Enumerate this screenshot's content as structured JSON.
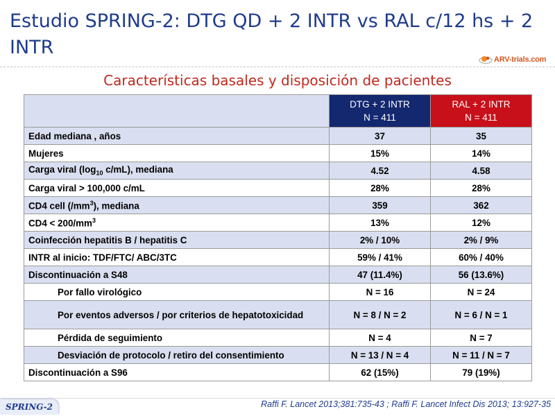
{
  "title": "Estudio SPRING-2: DTG QD + 2 INTR vs RAL c/12 hs + 2 INTR",
  "logo": {
    "text": "ARV-trials.com",
    "icon": "arv-trials-logo-icon"
  },
  "subtitle": "Características basales y disposición de pacientes",
  "table": {
    "columns": [
      {
        "line1": "DTG + 2 INTR",
        "line2": "N = 411",
        "color": "#14286f"
      },
      {
        "line1": "RAL + 2 INTR",
        "line2": "N = 411",
        "color": "#c8101a"
      }
    ],
    "rows": [
      {
        "label": "Edad mediana , años",
        "dtg": "37",
        "ral": "35"
      },
      {
        "label": "Mujeres",
        "dtg": "15%",
        "ral": "14%"
      },
      {
        "label_pre": "Carga viral (log",
        "label_sub": "10",
        "label_post": " c/mL), mediana",
        "dtg": "4.52",
        "ral": "4.58"
      },
      {
        "label": "Carga viral > 100,000 c/mL",
        "dtg": "28%",
        "ral": "28%"
      },
      {
        "label_pre": "CD4 cell (/mm",
        "label_sup": "3",
        "label_post": "), mediana",
        "dtg": "359",
        "ral": "362"
      },
      {
        "label_pre": "CD4 < 200/mm",
        "label_sup": "3",
        "dtg": "13%",
        "ral": "12%"
      },
      {
        "label": "Coinfección hepatitis B / hepatitis C",
        "dtg": "2% / 10%",
        "ral": "2% / 9%"
      },
      {
        "label": "INTR al inicio: TDF/FTC/ ABC/3TC",
        "dtg": "59% / 41%",
        "ral": "60% / 40%"
      },
      {
        "label": "Discontinuación a S48",
        "dtg": "47 (11.4%)",
        "ral": "56 (13.6%)"
      },
      {
        "label": "Por fallo virológico",
        "dtg": "N = 16",
        "ral": "N = 24"
      },
      {
        "label": "Por eventos adversos / por criterios de hepatotoxicidad",
        "dtg": "N = 8 / N = 2",
        "ral": "N = 6 / N  = 1"
      },
      {
        "label": "Pérdida de seguimiento",
        "dtg": "N = 4",
        "ral": "N = 7"
      },
      {
        "label": "Desviación de protocolo / retiro del consentimiento",
        "dtg": "N = 13 / N = 4",
        "ral": "N = 11 / N = 7"
      },
      {
        "label": "Discontinuación a S96",
        "dtg": "62 (15%)",
        "ral": "79 (19%)"
      }
    ]
  },
  "footer": {
    "badge": "SPRING-2",
    "reference": "Raffi F. Lancet 2013;381:735-43 ; Raffi F. Lancet Infect Dis 2013; 13:927-35"
  }
}
